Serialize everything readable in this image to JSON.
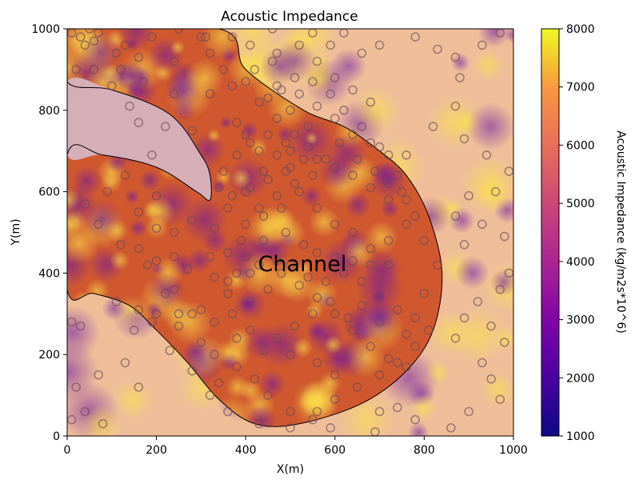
{
  "chart_data": {
    "type": "heatmap",
    "title": "Acoustic Impedance",
    "xlabel": "X(m)",
    "ylabel": "Y(m)",
    "xlim": [
      0,
      1000
    ],
    "ylim": [
      0,
      1000
    ],
    "xticks": [
      "0",
      "200",
      "400",
      "600",
      "800",
      "1000"
    ],
    "yticks": [
      "0",
      "200",
      "400",
      "600",
      "800",
      "1000"
    ],
    "colorbar": {
      "label": "Acoustic Impedance (kg/m2s*10^6)",
      "range": [
        1000,
        8000
      ],
      "ticks": [
        "1000",
        "2000",
        "3000",
        "4000",
        "5000",
        "6000",
        "7000",
        "8000"
      ],
      "colormap": "plasma"
    },
    "annotation": {
      "text": "Channel",
      "x": 420,
      "y": 420
    },
    "regions": {
      "channel": [
        [
          340,
          1000
        ],
        [
          400,
          900
        ],
        [
          530,
          800
        ],
        [
          620,
          760
        ],
        [
          700,
          700
        ],
        [
          760,
          640
        ],
        [
          810,
          540
        ],
        [
          840,
          400
        ],
        [
          820,
          260
        ],
        [
          760,
          160
        ],
        [
          660,
          80
        ],
        [
          520,
          30
        ],
        [
          420,
          30
        ],
        [
          340,
          90
        ],
        [
          270,
          180
        ],
        [
          200,
          260
        ],
        [
          140,
          320
        ],
        [
          60,
          350
        ],
        [
          0,
          360
        ],
        [
          0,
          690
        ],
        [
          80,
          690
        ],
        [
          200,
          660
        ],
        [
          290,
          600
        ],
        [
          320,
          580
        ],
        [
          320,
          640
        ],
        [
          300,
          690
        ],
        [
          230,
          790
        ],
        [
          100,
          850
        ],
        [
          0,
          870
        ],
        [
          0,
          1000
        ]
      ],
      "upper_lobe": [
        [
          0,
          870
        ],
        [
          100,
          850
        ],
        [
          230,
          790
        ],
        [
          300,
          690
        ],
        [
          320,
          640
        ],
        [
          320,
          580
        ],
        [
          290,
          600
        ],
        [
          200,
          660
        ],
        [
          80,
          690
        ],
        [
          0,
          690
        ]
      ]
    },
    "wells": [
      [
        10,
        990
      ],
      [
        30,
        980
      ],
      [
        50,
        1000
      ],
      [
        70,
        990
      ],
      [
        40,
        960
      ],
      [
        60,
        970
      ],
      [
        130,
        960
      ],
      [
        190,
        980
      ],
      [
        250,
        1000
      ],
      [
        310,
        980
      ],
      [
        370,
        980
      ],
      [
        240,
        920
      ],
      [
        160,
        930
      ],
      [
        110,
        940
      ],
      [
        120,
        900
      ],
      [
        60,
        900
      ],
      [
        20,
        900
      ],
      [
        100,
        860
      ],
      [
        170,
        870
      ],
      [
        240,
        840
      ],
      [
        320,
        840
      ],
      [
        400,
        870
      ],
      [
        460,
        920
      ],
      [
        410,
        960
      ],
      [
        460,
        1000
      ],
      [
        550,
        990
      ],
      [
        590,
        960
      ],
      [
        620,
        990
      ],
      [
        660,
        940
      ],
      [
        700,
        960
      ],
      [
        780,
        980
      ],
      [
        830,
        950
      ],
      [
        870,
        930
      ],
      [
        930,
        960
      ],
      [
        970,
        990
      ],
      [
        880,
        880
      ],
      [
        870,
        810
      ],
      [
        820,
        760
      ],
      [
        890,
        730
      ],
      [
        940,
        690
      ],
      [
        990,
        650
      ],
      [
        960,
        600
      ],
      [
        900,
        590
      ],
      [
        870,
        540
      ],
      [
        930,
        520
      ],
      [
        980,
        490
      ],
      [
        890,
        470
      ],
      [
        990,
        400
      ],
      [
        970,
        360
      ],
      [
        920,
        330
      ],
      [
        890,
        290
      ],
      [
        950,
        270
      ],
      [
        980,
        230
      ],
      [
        870,
        240
      ],
      [
        930,
        180
      ],
      [
        950,
        140
      ],
      [
        970,
        90
      ],
      [
        900,
        60
      ],
      [
        860,
        20
      ],
      [
        780,
        40
      ],
      [
        740,
        70
      ],
      [
        690,
        10
      ],
      [
        700,
        60
      ],
      [
        590,
        20
      ],
      [
        550,
        40
      ],
      [
        500,
        20
      ],
      [
        430,
        30
      ],
      [
        360,
        60
      ],
      [
        320,
        100
      ],
      [
        340,
        130
      ],
      [
        280,
        160
      ],
      [
        230,
        210
      ],
      [
        190,
        280
      ],
      [
        150,
        260
      ],
      [
        160,
        310
      ],
      [
        110,
        330
      ],
      [
        30,
        270
      ],
      [
        10,
        280
      ],
      [
        160,
        120
      ],
      [
        130,
        180
      ],
      [
        70,
        150
      ],
      [
        80,
        30
      ],
      [
        10,
        40
      ],
      [
        40,
        60
      ],
      [
        20,
        120
      ],
      [
        600,
        150
      ],
      [
        560,
        180
      ],
      [
        500,
        200
      ],
      [
        440,
        210
      ],
      [
        380,
        240
      ],
      [
        330,
        280
      ],
      [
        280,
        300
      ],
      [
        240,
        360
      ],
      [
        180,
        420
      ],
      [
        120,
        470
      ],
      [
        70,
        520
      ],
      [
        40,
        570
      ],
      [
        90,
        600
      ],
      [
        130,
        640
      ],
      [
        190,
        690
      ],
      [
        160,
        770
      ],
      [
        140,
        810
      ],
      [
        220,
        760
      ],
      [
        280,
        750
      ],
      [
        380,
        770
      ],
      [
        400,
        740
      ],
      [
        430,
        700
      ],
      [
        470,
        690
      ],
      [
        500,
        660
      ],
      [
        440,
        650
      ],
      [
        400,
        600
      ],
      [
        360,
        560
      ],
      [
        330,
        510
      ],
      [
        280,
        530
      ],
      [
        240,
        500
      ],
      [
        200,
        510
      ],
      [
        160,
        550
      ],
      [
        200,
        590
      ],
      [
        160,
        460
      ],
      [
        200,
        430
      ],
      [
        240,
        440
      ],
      [
        270,
        410
      ],
      [
        320,
        440
      ],
      [
        390,
        480
      ],
      [
        440,
        480
      ],
      [
        490,
        500
      ],
      [
        530,
        470
      ],
      [
        560,
        450
      ],
      [
        600,
        440
      ],
      [
        620,
        400
      ],
      [
        660,
        380
      ],
      [
        700,
        340
      ],
      [
        740,
        310
      ],
      [
        780,
        290
      ],
      [
        810,
        260
      ],
      [
        780,
        220
      ],
      [
        740,
        180
      ],
      [
        700,
        150
      ],
      [
        650,
        120
      ],
      [
        600,
        90
      ],
      [
        560,
        60
      ],
      [
        500,
        60
      ],
      [
        450,
        100
      ],
      [
        420,
        140
      ],
      [
        380,
        170
      ],
      [
        330,
        200
      ],
      [
        300,
        230
      ],
      [
        250,
        270
      ],
      [
        200,
        300
      ],
      [
        220,
        350
      ],
      [
        250,
        300
      ],
      [
        300,
        310
      ],
      [
        360,
        350
      ],
      [
        410,
        330
      ],
      [
        450,
        360
      ],
      [
        480,
        400
      ],
      [
        520,
        370
      ],
      [
        560,
        340
      ],
      [
        600,
        300
      ],
      [
        640,
        260
      ],
      [
        680,
        220
      ],
      [
        720,
        190
      ],
      [
        760,
        170
      ],
      [
        760,
        250
      ],
      [
        800,
        350
      ],
      [
        830,
        420
      ],
      [
        800,
        480
      ],
      [
        780,
        540
      ],
      [
        760,
        580
      ],
      [
        740,
        640
      ],
      [
        720,
        690
      ],
      [
        680,
        720
      ],
      [
        640,
        740
      ],
      [
        600,
        780
      ],
      [
        560,
        810
      ],
      [
        520,
        840
      ],
      [
        470,
        860
      ],
      [
        430,
        820
      ],
      [
        470,
        780
      ],
      [
        510,
        740
      ],
      [
        540,
        710
      ],
      [
        560,
        680
      ],
      [
        600,
        660
      ],
      [
        640,
        640
      ],
      [
        680,
        610
      ],
      [
        720,
        580
      ],
      [
        760,
        520
      ],
      [
        720,
        480
      ],
      [
        680,
        460
      ],
      [
        640,
        500
      ],
      [
        600,
        520
      ],
      [
        560,
        560
      ],
      [
        520,
        600
      ],
      [
        480,
        560
      ],
      [
        440,
        540
      ],
      [
        400,
        520
      ],
      [
        360,
        450
      ],
      [
        330,
        390
      ],
      [
        370,
        300
      ],
      [
        410,
        260
      ],
      [
        470,
        240
      ],
      [
        510,
        270
      ],
      [
        550,
        300
      ],
      [
        590,
        330
      ],
      [
        630,
        290
      ],
      [
        660,
        320
      ],
      [
        700,
        280
      ],
      [
        720,
        420
      ],
      [
        680,
        420
      ],
      [
        640,
        430
      ],
      [
        580,
        380
      ],
      [
        540,
        390
      ],
      [
        500,
        420
      ],
      [
        470,
        430
      ],
      [
        430,
        420
      ],
      [
        410,
        400
      ],
      [
        400,
        440
      ],
      [
        380,
        400
      ],
      [
        360,
        380
      ],
      [
        430,
        560
      ],
      [
        470,
        590
      ],
      [
        510,
        620
      ],
      [
        550,
        640
      ],
      [
        580,
        680
      ],
      [
        610,
        720
      ],
      [
        650,
        680
      ],
      [
        690,
        650
      ],
      [
        720,
        620
      ],
      [
        750,
        600
      ],
      [
        760,
        690
      ],
      [
        700,
        710
      ],
      [
        660,
        760
      ],
      [
        620,
        800
      ],
      [
        590,
        840
      ],
      [
        550,
        870
      ],
      [
        510,
        880
      ],
      [
        480,
        850
      ],
      [
        450,
        830
      ],
      [
        500,
        800
      ],
      [
        540,
        760
      ],
      [
        490,
        720
      ],
      [
        450,
        740
      ],
      [
        410,
        720
      ],
      [
        380,
        690
      ],
      [
        350,
        650
      ],
      [
        340,
        610
      ],
      [
        370,
        590
      ],
      [
        410,
        610
      ],
      [
        450,
        630
      ],
      [
        490,
        650
      ],
      [
        530,
        680
      ],
      [
        500,
        700
      ],
      [
        300,
        980
      ],
      [
        320,
        940
      ],
      [
        350,
        900
      ],
      [
        370,
        860
      ],
      [
        420,
        900
      ],
      [
        470,
        940
      ],
      [
        520,
        960
      ],
      [
        560,
        920
      ],
      [
        600,
        880
      ],
      [
        640,
        850
      ],
      [
        680,
        820
      ]
    ]
  }
}
